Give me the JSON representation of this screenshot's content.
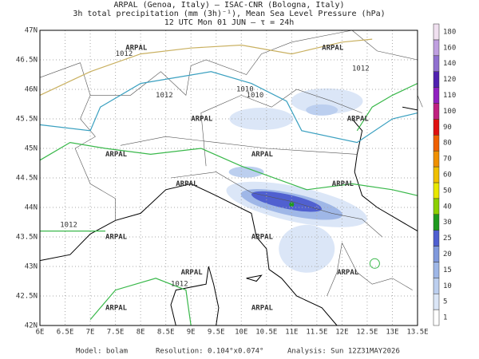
{
  "header": {
    "lines": [
      "ARPAL (Genoa, Italy)  –  ISAC-CNR (Bologna, Italy)",
      "3h total precipitation (mm (3h)⁻¹), Mean Sea Level Pressure (hPa)",
      "12 UTC Mon 01 JUN  –  τ = 24h"
    ]
  },
  "map": {
    "lon_labels": [
      "6E",
      "6.5E",
      "7E",
      "7.5E",
      "8E",
      "8.5E",
      "9E",
      "9.5E",
      "10E",
      "10.5E",
      "11E",
      "11.5E",
      "12E",
      "12.5E",
      "13E",
      "13.5E"
    ],
    "lat_labels": [
      "47N",
      "46.5N",
      "46N",
      "45.5N",
      "45N",
      "44.5N",
      "44N",
      "43.5N",
      "43N",
      "42.5N",
      "42N"
    ],
    "watermark": "ARPAL",
    "contour_labels": [
      "1012",
      "1010",
      "1012",
      "1012",
      "1010",
      "1012",
      "1012"
    ]
  },
  "colorbar": {
    "levels": [
      1,
      5,
      10,
      15,
      20,
      25,
      30,
      40,
      50,
      60,
      70,
      80,
      90,
      100,
      110,
      120,
      140,
      160,
      180
    ],
    "colors": [
      "#ffffff",
      "#dbe6f7",
      "#bccfef",
      "#9fb7e7",
      "#8099dc",
      "#4f5fd0",
      "#1e9a1e",
      "#8cd000",
      "#e8e800",
      "#f0c000",
      "#f09000",
      "#f06000",
      "#e01010",
      "#c02080",
      "#9020c0",
      "#5020b0",
      "#9070d0",
      "#c0a0e0",
      "#f0e0f0"
    ]
  },
  "footer": {
    "model": "Model: bolam",
    "resolution": "Resolution: 0.104°x0.074°",
    "analysis": "Analysis: Sun 12Z31MAY2026"
  }
}
